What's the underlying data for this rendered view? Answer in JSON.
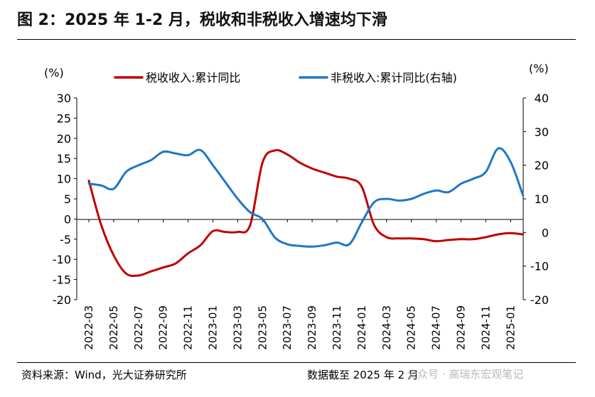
{
  "title": "图 2：2025 年 1-2 月，税收和非税收入增速均下滑",
  "footer": {
    "source": "资料来源：Wind，光大证券研究所",
    "cutoff": "数据截至 2025 年 2 月",
    "watermark": "公众号 · 高瑞东宏观笔记"
  },
  "colors": {
    "tax": "#c00000",
    "nontax": "#1f77c4"
  },
  "chart_data": {
    "type": "line",
    "left_unit": "(%)",
    "right_unit": "(%)",
    "y_left": {
      "min": -20,
      "max": 30,
      "ticks": [
        30,
        25,
        20,
        15,
        10,
        5,
        0,
        -5,
        -10,
        -15,
        -20
      ]
    },
    "y_right": {
      "min": -20,
      "max": 40,
      "ticks": [
        40,
        30,
        20,
        10,
        0,
        -10,
        -20
      ]
    },
    "x_labels": [
      "2022-03",
      "2022-05",
      "2022-07",
      "2022-09",
      "2022-11",
      "2023-01",
      "2023-03",
      "2023-05",
      "2023-07",
      "2023-09",
      "2023-11",
      "2024-01",
      "2024-03",
      "2024-05",
      "2024-07",
      "2024-09",
      "2024-11",
      "2025-01"
    ],
    "legend": [
      "税收收入:累计同比",
      "非税收入:累计同比(右轴)"
    ],
    "series": [
      {
        "name": "税收收入:累计同比",
        "axis": "left",
        "x": [
          0,
          0.5,
          1,
          1.5,
          2,
          2.5,
          3,
          3.5,
          4,
          4.5,
          5,
          5.5,
          6,
          6.5,
          7,
          7.5,
          8,
          8.5,
          9,
          9.5,
          10,
          10.5,
          11,
          11.5,
          12,
          12.5,
          13,
          13.5,
          14,
          14.5,
          15,
          15.5,
          16,
          16.5,
          17,
          17.5
        ],
        "values": [
          9.5,
          -1.5,
          -9.0,
          -13.5,
          -14.0,
          -13.0,
          -12.0,
          -11.0,
          -8.5,
          -6.5,
          -3.0,
          -3.2,
          -3.2,
          -1.5,
          14.0,
          17.0,
          16.0,
          14.0,
          12.5,
          11.5,
          10.5,
          10.0,
          8.0,
          -1.5,
          -4.5,
          -4.8,
          -4.8,
          -5.0,
          -5.5,
          -5.2,
          -5.0,
          -5.0,
          -4.5,
          -3.8,
          -3.5,
          -3.8
        ]
      },
      {
        "name": "非税收入:累计同比(右轴)",
        "axis": "right",
        "x": [
          0,
          0.5,
          1,
          1.5,
          2,
          2.5,
          3,
          3.5,
          4,
          4.5,
          5,
          5.5,
          6,
          6.5,
          7,
          7.5,
          8,
          8.5,
          9,
          9.5,
          10,
          10.5,
          11,
          11.5,
          12,
          12.5,
          13,
          13.5,
          14,
          14.5,
          15,
          15.5,
          16,
          16.5,
          17,
          17.5
        ],
        "values": [
          14.5,
          14.0,
          13.0,
          18.0,
          20.0,
          21.5,
          24.0,
          23.5,
          23.0,
          24.5,
          20.0,
          15.0,
          10.0,
          6.0,
          4.0,
          -1.5,
          -3.5,
          -4.0,
          -4.2,
          -3.8,
          -3.0,
          -3.5,
          3.0,
          9.0,
          10.0,
          9.5,
          10.0,
          11.5,
          12.5,
          12.0,
          14.5,
          16.0,
          18.0,
          25.0,
          21.0,
          11.0
        ]
      }
    ]
  }
}
